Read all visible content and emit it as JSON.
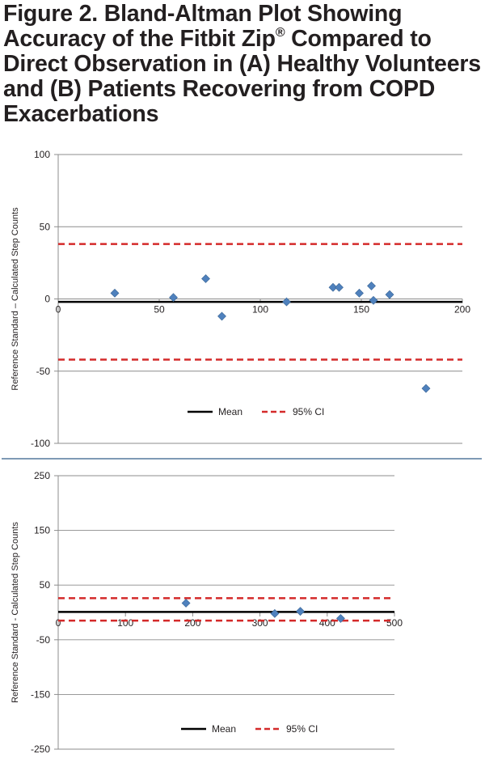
{
  "figure": {
    "title_main": "Figure 2. Bland-Altman Plot Showing Accuracy of the Fitbit Zip",
    "title_sup": "®",
    "title_rest": " Compared to Direct Observation in (A) Healthy Volunteers and (B) Patients Recovering from COPD Exacerbations"
  },
  "chart_data": [
    {
      "type": "scatter",
      "panel": "A",
      "title": "",
      "xlabel": "",
      "ylabel": "Reference Standard – Calculated Step Counts",
      "xlim": [
        0,
        200
      ],
      "ylim": [
        -100,
        100
      ],
      "x_ticks": [
        0,
        50,
        100,
        150,
        200
      ],
      "y_ticks": [
        -100,
        -50,
        0,
        50,
        100
      ],
      "x_tick_labels": [
        "0",
        "50",
        "100",
        "150",
        "200"
      ],
      "y_tick_labels": [
        "-100",
        "-50",
        "0",
        "50",
        "100"
      ],
      "x_axis_at_y": 0,
      "grid": "horizontal",
      "legend_position": "bottom-center",
      "points": [
        {
          "x": 28,
          "y": 4
        },
        {
          "x": 57,
          "y": 1
        },
        {
          "x": 73,
          "y": 14
        },
        {
          "x": 81,
          "y": -12
        },
        {
          "x": 113,
          "y": -2
        },
        {
          "x": 136,
          "y": 8
        },
        {
          "x": 139,
          "y": 8
        },
        {
          "x": 149,
          "y": 4
        },
        {
          "x": 155,
          "y": 9
        },
        {
          "x": 156,
          "y": -1
        },
        {
          "x": 164,
          "y": 3
        },
        {
          "x": 182,
          "y": -62
        }
      ],
      "reference_lines": [
        {
          "name": "Mean",
          "y": -2,
          "style": "solid",
          "color": "#000000"
        },
        {
          "name": "95% CI",
          "y": 38,
          "style": "dashed",
          "color": "#d42a2a"
        },
        {
          "name": "95% CI",
          "y": -42,
          "style": "dashed",
          "color": "#d42a2a"
        }
      ],
      "legend": [
        {
          "label": "Mean",
          "style": "solid",
          "color": "#000000"
        },
        {
          "label": "95% CI",
          "style": "dashed",
          "color": "#d42a2a"
        }
      ],
      "point_color": "#4f81bd"
    },
    {
      "type": "scatter",
      "panel": "B",
      "title": "",
      "xlabel": "",
      "ylabel": "Reference Standard - Calculated Step Counts",
      "xlim": [
        0,
        500
      ],
      "ylim": [
        -250,
        250
      ],
      "x_ticks": [
        0,
        100,
        200,
        300,
        400,
        500
      ],
      "y_ticks": [
        -250,
        -150,
        -50,
        50,
        150,
        250
      ],
      "x_tick_labels": [
        "0",
        "100",
        "200",
        "300",
        "400",
        "500"
      ],
      "y_tick_labels": [
        "-250",
        "-150",
        "-50",
        "50",
        "150",
        "250"
      ],
      "x_axis_at_y": 0,
      "grid": "horizontal",
      "legend_position": "bottom-center",
      "points": [
        {
          "x": 190,
          "y": 17
        },
        {
          "x": 322,
          "y": -2
        },
        {
          "x": 360,
          "y": 2
        },
        {
          "x": 420,
          "y": -11
        }
      ],
      "reference_lines": [
        {
          "name": "Mean",
          "y": 1,
          "style": "solid",
          "color": "#000000"
        },
        {
          "name": "95% CI",
          "y": 26,
          "style": "dashed",
          "color": "#d42a2a"
        },
        {
          "name": "95% CI",
          "y": -15,
          "style": "dashed",
          "color": "#d42a2a"
        }
      ],
      "legend": [
        {
          "label": "Mean",
          "style": "solid",
          "color": "#000000"
        },
        {
          "label": "95% CI",
          "style": "dashed",
          "color": "#d42a2a"
        }
      ],
      "point_color": "#4f81bd"
    }
  ]
}
